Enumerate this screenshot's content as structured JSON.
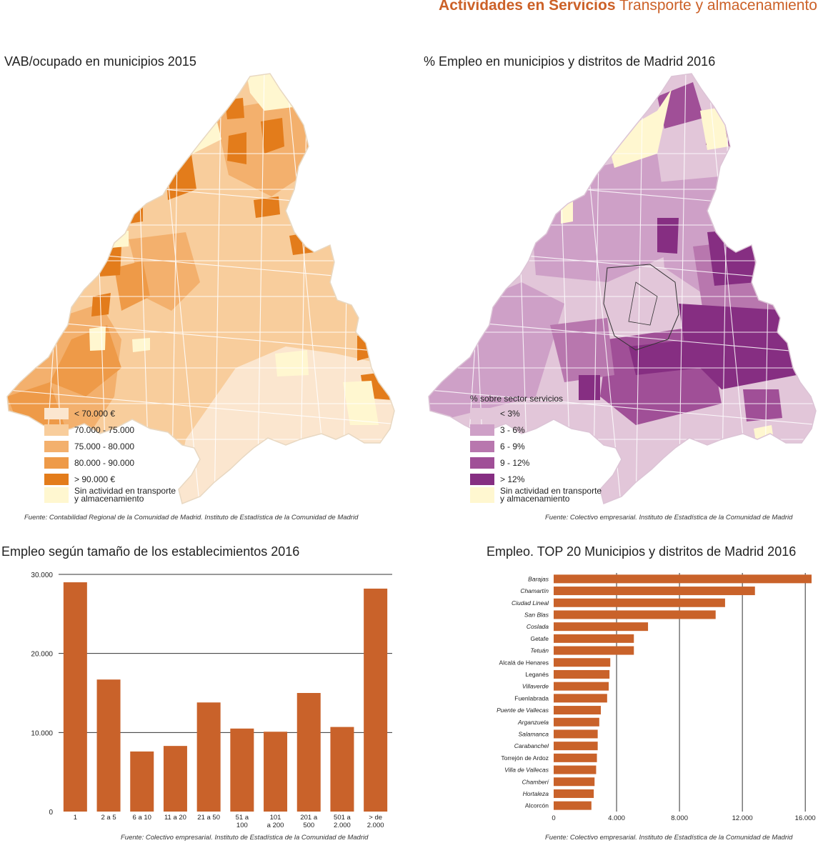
{
  "header": {
    "bold": "Actividades en Servicios",
    "rest": "Transporte y almacenamiento"
  },
  "map1": {
    "title": "VAB/ocupado en municipios  2015",
    "fuente": "Fuente: Contabilidad Regional de la Comunidad de Madrid. Instituto de Estadística de la Comunidad de Madrid",
    "legend": [
      {
        "label": "< 70.000 €",
        "color": "#fbe6cf"
      },
      {
        "label": "70.000 - 75.000",
        "color": "#f8cd9c"
      },
      {
        "label": "75.000 - 80.000",
        "color": "#f3b06d"
      },
      {
        "label": "80.000 - 90.000",
        "color": "#ee9a48"
      },
      {
        "label": "> 90.000 €",
        "color": "#e37c1b"
      }
    ],
    "none_line1": "Sin actividad en transporte",
    "none_line2": "y almacenamiento",
    "none_color": "#fff7d0"
  },
  "map2": {
    "title": "% Empleo en municipios y distritos de Madrid  2016",
    "fuente": "Fuente: Colectivo empresarial. Instituto de Estadística de la Comunidad de Madrid",
    "legend_title": "% sobre sector servicios",
    "legend": [
      {
        "label": "< 3%",
        "color": "#e2c6d9"
      },
      {
        "label": "3 - 6%",
        "color": "#cea0c7"
      },
      {
        "label": "6 - 9%",
        "color": "#b877ae"
      },
      {
        "label": "9 - 12%",
        "color": "#a04f97"
      },
      {
        "label": "> 12%",
        "color": "#862e82"
      }
    ],
    "none_line1": "Sin actividad en transporte",
    "none_line2": "y almacenamiento",
    "none_color": "#fff7d0"
  },
  "chart_data": [
    {
      "type": "bar",
      "title": "Empleo según tamaño de los establecimientos  2016",
      "categories": [
        "1",
        "2 a 5",
        "6 a 10",
        "11 a 20",
        "21 a 50",
        "51 a 100",
        "101 a 200",
        "201 a 500",
        "501 a 2.000",
        "> de 2.000"
      ],
      "category_lines": [
        [
          "1"
        ],
        [
          "2 a 5"
        ],
        [
          "6 a 10"
        ],
        [
          "11 a 20"
        ],
        [
          "21 a 50"
        ],
        [
          "51 a",
          "100"
        ],
        [
          "101",
          "a 200"
        ],
        [
          "201 a",
          "500"
        ],
        [
          "501 a",
          "2.000"
        ],
        [
          "> de",
          "2.000"
        ]
      ],
      "values": [
        29000,
        16700,
        7600,
        8300,
        13800,
        10500,
        10100,
        15000,
        10700,
        28200
      ],
      "ylim": [
        0,
        30000
      ],
      "yticks": [
        0,
        10000,
        20000,
        30000
      ],
      "ytick_labels": [
        "0",
        "10.000",
        "20.000",
        "30.000"
      ],
      "grid": true,
      "bar_color": "#c9622a",
      "fuente": "Fuente: Colectivo empresarial. Instituto de Estadística de la Comunidad de Madrid"
    },
    {
      "type": "bar",
      "orientation": "horizontal",
      "title": "Empleo. TOP 20 Municipios y distritos de Madrid  2016",
      "categories": [
        "Barajas",
        "Chamartín",
        "Ciudad Lineal",
        "San Blas",
        "Coslada",
        "Getafe",
        "Tetuán",
        "Alcalá de Henares",
        "Leganés",
        "Villaverde",
        "Fuenlabrada",
        "Puente de Vallecas",
        "Arganzuela",
        "Salamanca",
        "Carabanchel",
        "Torrejón de Ardoz",
        "Villa de Vallecas",
        "Chamberí",
        "Hortaleza",
        "Alcorcón"
      ],
      "italic": [
        true,
        true,
        true,
        true,
        true,
        false,
        true,
        false,
        false,
        true,
        false,
        true,
        true,
        true,
        true,
        false,
        true,
        true,
        true,
        false
      ],
      "values": [
        16400,
        12800,
        10900,
        10300,
        6000,
        5100,
        5100,
        3600,
        3550,
        3500,
        3400,
        3000,
        2900,
        2800,
        2800,
        2750,
        2700,
        2600,
        2550,
        2400
      ],
      "xlim": [
        0,
        16400
      ],
      "xticks": [
        0,
        4000,
        8000,
        12000,
        16000
      ],
      "xtick_labels": [
        "0",
        "4.000",
        "8.000",
        "12.000",
        "16.000"
      ],
      "grid": true,
      "bar_color": "#c9622a",
      "fuente": "Fuente: Colectivo empresarial. Instituto de Estadística de la Comunidad de Madrid"
    }
  ]
}
